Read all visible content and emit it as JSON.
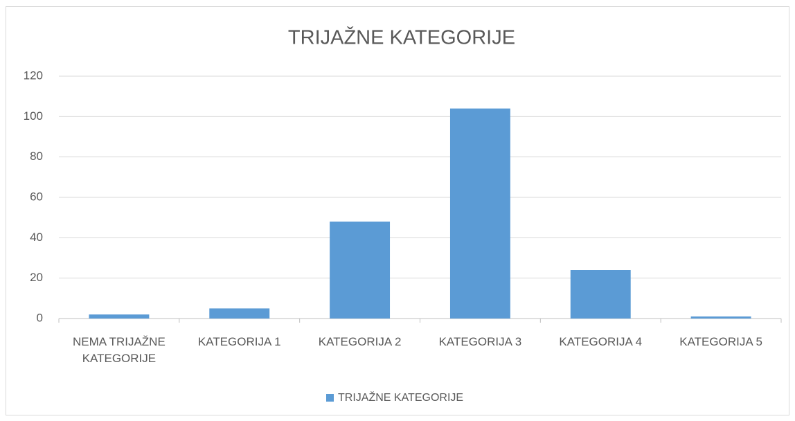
{
  "chart_data": {
    "type": "bar",
    "title": "TRIJAŽNE KATEGORIJE",
    "categories": [
      "NEMA TRIJAŽNE KATEGORIJE",
      "KATEGORIJA 1",
      "KATEGORIJA 2",
      "KATEGORIJA 3",
      "KATEGORIJA 4",
      "KATEGORIJA 5"
    ],
    "series": [
      {
        "name": "TRIJAŽNE KATEGORIJE",
        "color": "#5b9bd5",
        "values": [
          2,
          5,
          48,
          104,
          24,
          1
        ]
      }
    ],
    "ylim": [
      0,
      120
    ],
    "yticks": [
      0,
      20,
      40,
      60,
      80,
      100,
      120
    ],
    "grid": true,
    "legend": "bottom"
  }
}
